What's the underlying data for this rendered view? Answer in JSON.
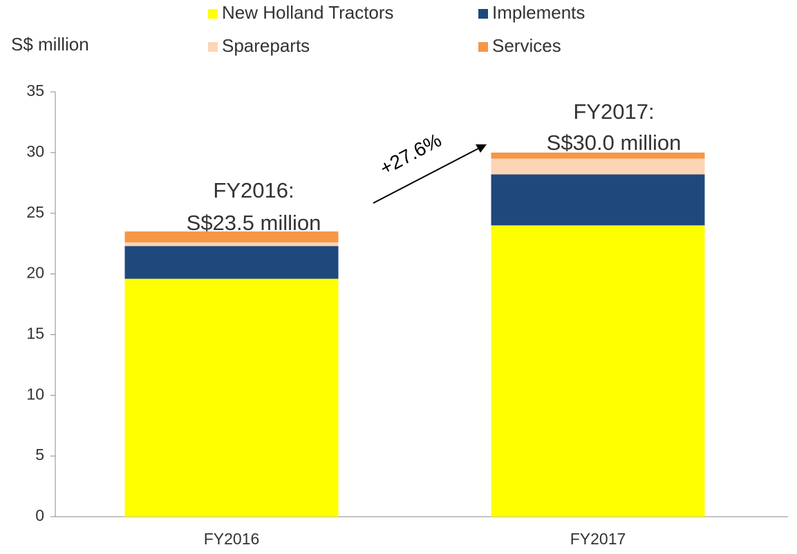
{
  "chart_data": {
    "type": "bar",
    "stacked": true,
    "y_axis_label": "S$ million",
    "categories": [
      "FY2016",
      "FY2017"
    ],
    "series": [
      {
        "name": "New Holland Tractors",
        "color": "#ffff00",
        "values": [
          19.6,
          24.0
        ]
      },
      {
        "name": "Implements",
        "color": "#1f497d",
        "values": [
          2.7,
          4.2
        ]
      },
      {
        "name": "Spareparts",
        "color": "#fbd5b5",
        "values": [
          0.3,
          1.3
        ]
      },
      {
        "name": "Services",
        "color": "#f79646",
        "values": [
          0.9,
          0.5
        ]
      }
    ],
    "ylim": [
      0,
      35
    ],
    "yticks": [
      0,
      5,
      10,
      15,
      20,
      25,
      30,
      35
    ],
    "annotations": [
      "FY2016:",
      "S$23.5 million",
      "FY2017:",
      "S$30.0 million",
      "+27.6%"
    ]
  }
}
